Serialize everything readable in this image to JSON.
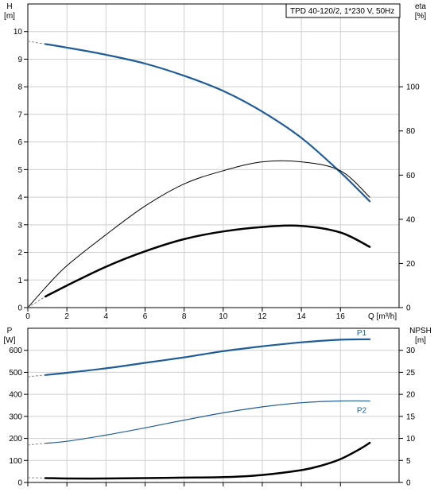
{
  "title": "TPD 40-120/2, 1*230 V, 50Hz",
  "colors": {
    "blue": "#1f5c99",
    "black": "#000000",
    "grid": "#cfcfcf",
    "dash": "#888888"
  },
  "chart_data": [
    {
      "type": "line",
      "panel": "head-efficiency",
      "xlabel": "Q [m³/h]",
      "ylabel_left": {
        "name": "H",
        "unit": "[m]"
      },
      "ylabel_right": {
        "name": "eta",
        "unit": "[%]"
      },
      "xlim": [
        0,
        19
      ],
      "ylim_left": [
        0,
        11
      ],
      "ylim_right": [
        0,
        137.5
      ],
      "x_ticks": [
        0,
        2,
        4,
        6,
        8,
        10,
        12,
        14,
        16
      ],
      "y_ticks_left": [
        0,
        1,
        2,
        3,
        4,
        5,
        6,
        7,
        8,
        9,
        10
      ],
      "y_ticks_right": [
        0,
        20,
        40,
        60,
        80,
        100
      ],
      "grid": true,
      "series": [
        {
          "key": "H",
          "axis": "left",
          "color": "#1f5c99",
          "width": 2.2,
          "x": [
            0.9,
            2,
            4,
            6,
            8,
            10,
            12,
            14,
            16,
            17.5
          ],
          "y": [
            9.55,
            9.42,
            9.16,
            8.84,
            8.4,
            7.85,
            7.1,
            6.15,
            4.9,
            3.85
          ],
          "extension": {
            "x": [
              0,
              0.9
            ],
            "y": [
              9.65,
              9.55
            ]
          }
        },
        {
          "key": "eta-thin",
          "axis": "right",
          "color": "#000000",
          "width": 1,
          "x": [
            0,
            1,
            2,
            4,
            6,
            8,
            10,
            12,
            14,
            16,
            17.5
          ],
          "y": [
            0,
            10,
            19,
            33,
            46,
            56,
            62,
            66,
            66,
            62,
            50
          ]
        },
        {
          "key": "eta-thick",
          "axis": "right",
          "color": "#000000",
          "width": 2.5,
          "x": [
            0.9,
            2,
            4,
            6,
            8,
            10,
            12,
            14,
            16,
            17.5
          ],
          "y": [
            5,
            10,
            18.5,
            25.5,
            31,
            34.5,
            36.5,
            37,
            34,
            27.5
          ],
          "extension": {
            "x": [
              0,
              0.9
            ],
            "y": [
              0,
              5
            ]
          }
        }
      ]
    },
    {
      "type": "line",
      "panel": "power-npsh",
      "ylabel_left": {
        "name": "P",
        "unit": "[W]"
      },
      "ylabel_right": {
        "name": "NPSH",
        "unit": "[m]"
      },
      "xlim": [
        0,
        19
      ],
      "ylim_left": [
        0,
        700
      ],
      "ylim_right": [
        0,
        35
      ],
      "x_ticks": [
        0,
        2,
        4,
        6,
        8,
        10,
        12,
        14,
        16
      ],
      "y_ticks_left": [
        0,
        100,
        200,
        300,
        400,
        500,
        600
      ],
      "y_ticks_right": [
        0,
        5,
        10,
        15,
        20,
        25,
        30
      ],
      "grid": true,
      "series": [
        {
          "name": "P1",
          "axis": "left",
          "color": "#1f5c99",
          "width": 2.2,
          "x": [
            0.9,
            2,
            4,
            6,
            8,
            10,
            12,
            14,
            16,
            17.5
          ],
          "y": [
            488,
            498,
            518,
            543,
            568,
            596,
            618,
            636,
            648,
            650
          ],
          "extension": {
            "x": [
              0,
              0.9
            ],
            "y": [
              480,
              488
            ]
          }
        },
        {
          "name": "P2",
          "axis": "left",
          "color": "#1f5c99",
          "width": 1.2,
          "x": [
            0.9,
            2,
            4,
            6,
            8,
            10,
            12,
            14,
            16,
            17.5
          ],
          "y": [
            178,
            187,
            215,
            248,
            283,
            316,
            343,
            362,
            370,
            370
          ],
          "extension": {
            "x": [
              0,
              0.9
            ],
            "y": [
              170,
              178
            ]
          }
        },
        {
          "key": "NPSH",
          "axis": "right",
          "color": "#000000",
          "width": 2.5,
          "x": [
            0.9,
            2,
            4,
            6,
            8,
            10,
            12,
            14,
            15,
            16,
            17,
            17.5
          ],
          "y": [
            1.0,
            0.9,
            0.9,
            1.0,
            1.1,
            1.2,
            1.7,
            2.8,
            3.8,
            5.3,
            7.6,
            9.0
          ],
          "extension": {
            "x": [
              0,
              0.9
            ],
            "y": [
              1.1,
              1.0
            ]
          }
        }
      ]
    }
  ]
}
